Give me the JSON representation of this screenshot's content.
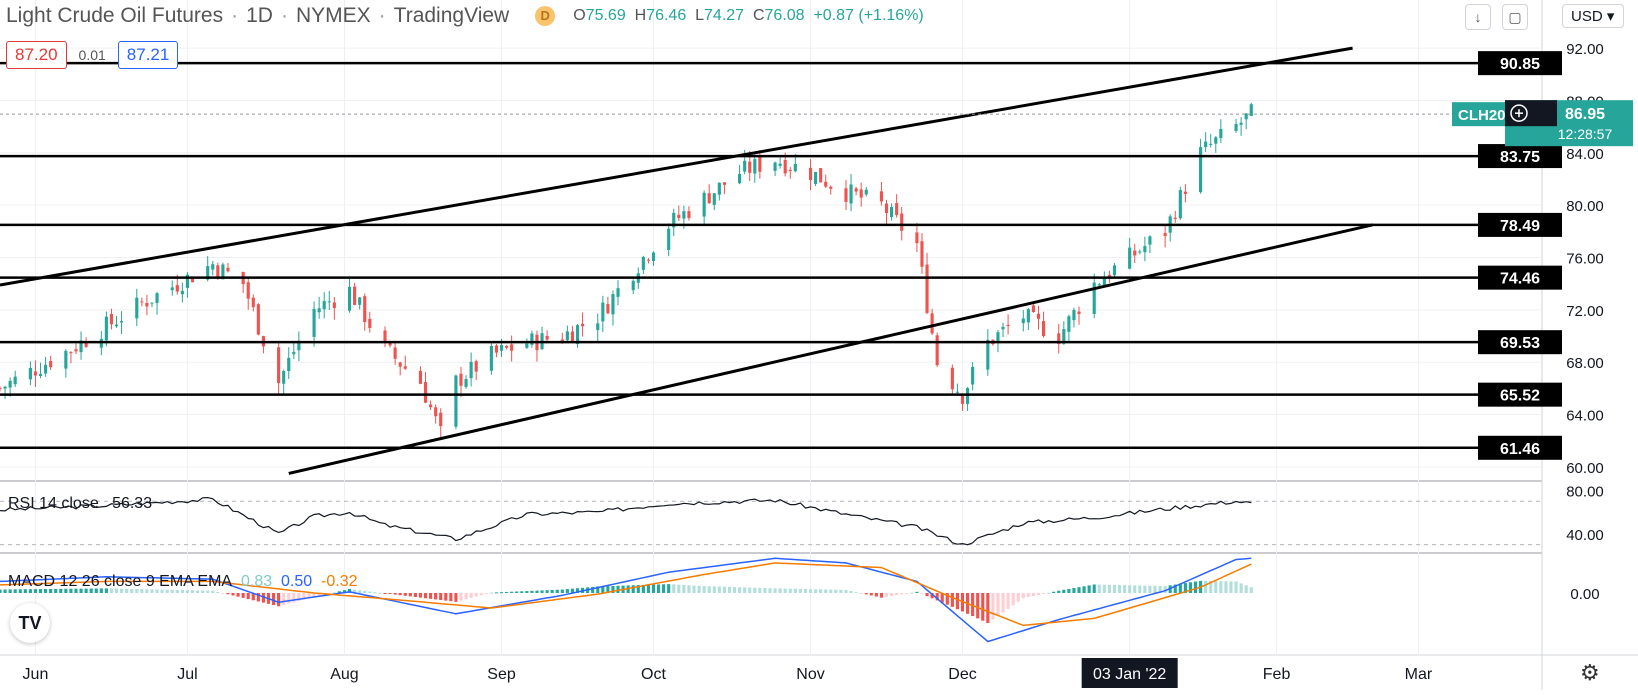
{
  "header": {
    "title": "Light Crude Oil Futures",
    "interval": "1D",
    "exchange": "NYMEX",
    "source": "TradingView",
    "delay_badge": "D",
    "ohlc": {
      "o_label": "O",
      "o": "75.69",
      "h_label": "H",
      "h": "76.46",
      "l_label": "L",
      "l": "74.27",
      "c_label": "C",
      "c": "76.08",
      "change": "+0.87 (+1.16%)"
    }
  },
  "quote": {
    "bid": "87.20",
    "spread": "0.01",
    "ask": "87.21"
  },
  "toolbar": {
    "currency": "USD"
  },
  "colors": {
    "up": "#26a69a",
    "down": "#ef5350",
    "rsi_line": "#131722",
    "macd_line": "#2962ff",
    "signal_line": "#f57c00",
    "hist_up_strong": "#26a69a",
    "hist_up_weak": "#b2dfdb",
    "hist_down_strong": "#ef5350",
    "hist_down_weak": "#ffcdd2",
    "level_line": "#000000"
  },
  "chart_data": {
    "type": "candlestick",
    "symbol_tag": "CLH20",
    "last_price": 86.95,
    "countdown": "12:28:57",
    "ylim": [
      59,
      93
    ],
    "yticks": [
      60,
      64,
      68,
      72,
      76,
      80,
      84,
      88,
      92
    ],
    "ytick_labels": [
      "60.00",
      "64.00",
      "68.00",
      "72.00",
      "76.00",
      "80.00",
      "84.00",
      "88.00",
      "92.00"
    ],
    "xticks": [
      {
        "label": "Jun",
        "date": "2021-06-01"
      },
      {
        "label": "Jul",
        "date": "2021-07-01"
      },
      {
        "label": "Aug",
        "date": "2021-08-01"
      },
      {
        "label": "Sep",
        "date": "2021-09-01"
      },
      {
        "label": "Oct",
        "date": "2021-10-01"
      },
      {
        "label": "Nov",
        "date": "2021-11-01"
      },
      {
        "label": "Dec",
        "date": "2021-12-01"
      },
      {
        "label": "03 Jan '22",
        "date": "2022-01-03"
      },
      {
        "label": "Feb",
        "date": "2022-02-01"
      },
      {
        "label": "Mar",
        "date": "2022-03-01"
      }
    ],
    "xrange": [
      "2021-05-25",
      "2022-03-25"
    ],
    "highlight_xtick": "03 Jan '22",
    "levels": [
      90.85,
      83.75,
      78.49,
      74.46,
      69.53,
      65.52,
      61.46
    ],
    "level_labels": [
      "90.85",
      "83.75",
      "78.49",
      "74.46",
      "69.53",
      "65.52",
      "61.46"
    ],
    "channel_upper": [
      [
        "2021-05-25",
        73.9
      ],
      [
        "2022-02-16",
        92.0
      ]
    ],
    "channel_lower": [
      [
        "2021-07-21",
        59.5
      ],
      [
        "2022-02-20",
        78.5
      ]
    ],
    "close_keypoints": [
      [
        "2021-05-25",
        66.0
      ],
      [
        "2021-06-08",
        69.0
      ],
      [
        "2021-06-22",
        72.5
      ],
      [
        "2021-07-06",
        75.5
      ],
      [
        "2021-07-12",
        74.0
      ],
      [
        "2021-07-19",
        66.5
      ],
      [
        "2021-07-26",
        72.0
      ],
      [
        "2021-08-02",
        73.5
      ],
      [
        "2021-08-09",
        69.0
      ],
      [
        "2021-08-16",
        66.5
      ],
      [
        "2021-08-20",
        62.5
      ],
      [
        "2021-08-23",
        66.5
      ],
      [
        "2021-08-30",
        68.5
      ],
      [
        "2021-09-06",
        69.5
      ],
      [
        "2021-09-13",
        70.0
      ],
      [
        "2021-09-20",
        71.5
      ],
      [
        "2021-09-27",
        75.0
      ],
      [
        "2021-10-04",
        78.5
      ],
      [
        "2021-10-11",
        80.5
      ],
      [
        "2021-10-18",
        82.5
      ],
      [
        "2021-10-25",
        83.5
      ],
      [
        "2021-11-01",
        82.5
      ],
      [
        "2021-11-08",
        81.0
      ],
      [
        "2021-11-15",
        80.0
      ],
      [
        "2021-11-22",
        77.0
      ],
      [
        "2021-11-26",
        68.0
      ],
      [
        "2021-12-01",
        65.5
      ],
      [
        "2021-12-06",
        69.5
      ],
      [
        "2021-12-13",
        71.5
      ],
      [
        "2021-12-20",
        70.0
      ],
      [
        "2021-12-27",
        74.0
      ],
      [
        "2022-01-03",
        76.0
      ],
      [
        "2022-01-10",
        78.0
      ],
      [
        "2022-01-17",
        84.0
      ],
      [
        "2022-01-24",
        86.0
      ],
      [
        "2022-01-27",
        86.95
      ]
    ],
    "rsi": {
      "label": "RSI 14 close",
      "value": "56.33",
      "ylim": [
        25,
        85
      ],
      "yticks": [
        40,
        80
      ],
      "ytick_labels": [
        "40.00",
        "80.00"
      ],
      "bands": [
        30,
        70
      ],
      "keypoints": [
        [
          "2021-05-25",
          62
        ],
        [
          "2021-06-15",
          66
        ],
        [
          "2021-07-06",
          72
        ],
        [
          "2021-07-19",
          40
        ],
        [
          "2021-07-26",
          56
        ],
        [
          "2021-08-02",
          60
        ],
        [
          "2021-08-09",
          48
        ],
        [
          "2021-08-23",
          35
        ],
        [
          "2021-09-06",
          58
        ],
        [
          "2021-09-20",
          60
        ],
        [
          "2021-10-04",
          68
        ],
        [
          "2021-10-18",
          70
        ],
        [
          "2021-10-25",
          71
        ],
        [
          "2021-11-08",
          58
        ],
        [
          "2021-11-22",
          46
        ],
        [
          "2021-12-01",
          30
        ],
        [
          "2021-12-13",
          50
        ],
        [
          "2021-12-27",
          55
        ],
        [
          "2022-01-10",
          63
        ],
        [
          "2022-01-24",
          70
        ],
        [
          "2022-01-27",
          68
        ]
      ]
    },
    "macd": {
      "label": "MACD 12 26 close 9 EMA EMA",
      "hist_value": "0.83",
      "macd_value": "0.50",
      "signal_value": "-0.32",
      "ylim": [
        -4.5,
        3.2
      ],
      "yticks": [
        0
      ],
      "ytick_labels": [
        "0.00"
      ],
      "macd_keypoints": [
        [
          "2021-05-25",
          1.0
        ],
        [
          "2021-06-15",
          1.4
        ],
        [
          "2021-07-06",
          1.2
        ],
        [
          "2021-07-19",
          -0.8
        ],
        [
          "2021-08-02",
          0.1
        ],
        [
          "2021-08-23",
          -1.8
        ],
        [
          "2021-09-13",
          -0.2
        ],
        [
          "2021-10-04",
          1.8
        ],
        [
          "2021-10-25",
          3.0
        ],
        [
          "2021-11-08",
          2.6
        ],
        [
          "2021-11-22",
          1.0
        ],
        [
          "2021-12-06",
          -4.2
        ],
        [
          "2021-12-20",
          -2.3
        ],
        [
          "2022-01-10",
          0.2
        ],
        [
          "2022-01-24",
          2.9
        ],
        [
          "2022-01-27",
          3.0
        ]
      ],
      "signal_keypoints": [
        [
          "2021-05-25",
          0.7
        ],
        [
          "2021-06-15",
          1.0
        ],
        [
          "2021-07-06",
          1.0
        ],
        [
          "2021-07-26",
          0.0
        ],
        [
          "2021-08-09",
          -0.5
        ],
        [
          "2021-08-30",
          -1.3
        ],
        [
          "2021-09-20",
          -0.1
        ],
        [
          "2021-10-11",
          1.6
        ],
        [
          "2021-10-25",
          2.6
        ],
        [
          "2021-11-15",
          2.2
        ],
        [
          "2021-11-29",
          -0.4
        ],
        [
          "2021-12-13",
          -2.8
        ],
        [
          "2021-12-27",
          -2.2
        ],
        [
          "2022-01-17",
          0.5
        ],
        [
          "2022-01-27",
          2.5
        ]
      ]
    }
  }
}
